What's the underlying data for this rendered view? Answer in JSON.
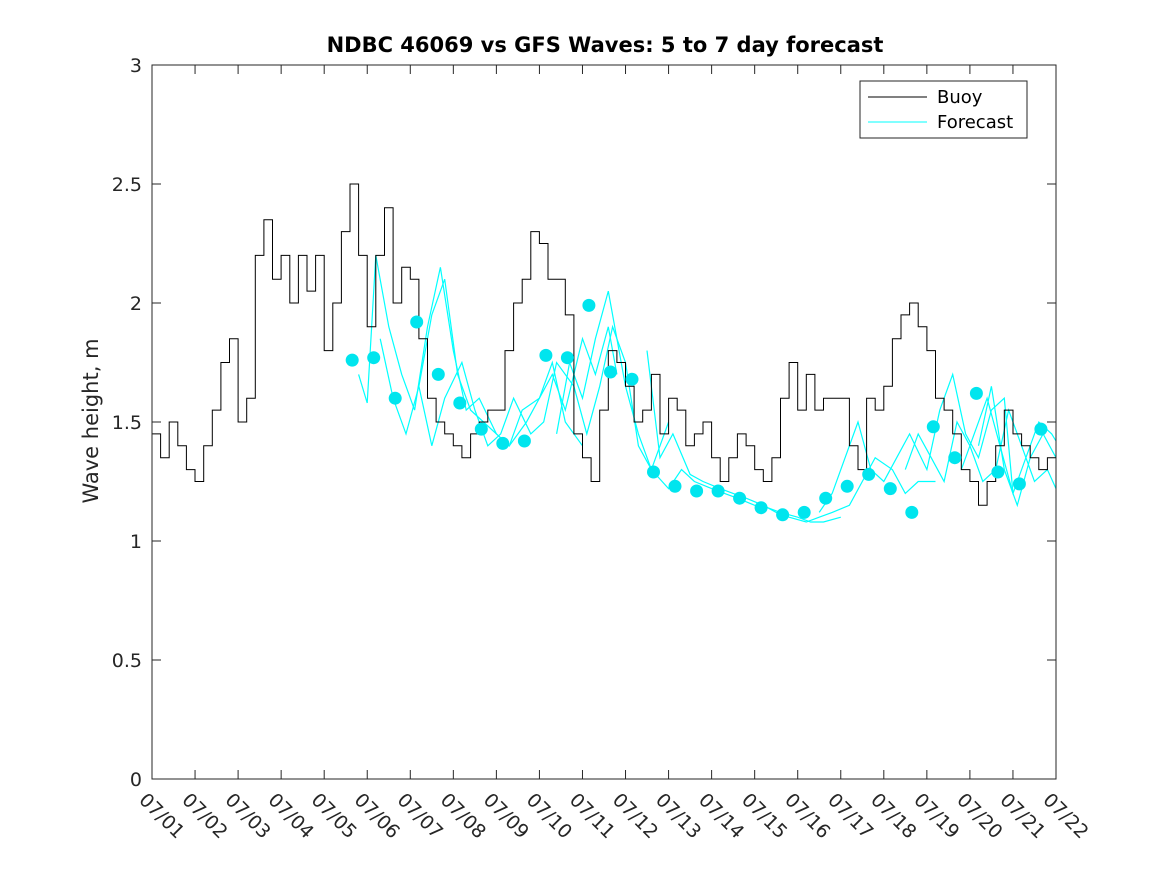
{
  "chart_data": {
    "type": "line",
    "title": "NDBC 46069 vs GFS Waves: 5 to 7 day forecast",
    "xlabel": "",
    "ylabel": "Wave height, m",
    "xlim": [
      "07/01",
      "07/22"
    ],
    "ylim": [
      0,
      3
    ],
    "x_ticks": [
      "07/01",
      "07/02",
      "07/03",
      "07/04",
      "07/05",
      "07/06",
      "07/07",
      "07/08",
      "07/09",
      "07/10",
      "07/11",
      "07/12",
      "07/13",
      "07/14",
      "07/15",
      "07/16",
      "07/17",
      "07/18",
      "07/19",
      "07/20",
      "07/21",
      "07/22"
    ],
    "y_ticks": [
      "0",
      "0.5",
      "1",
      "1.5",
      "2",
      "2.5",
      "3"
    ],
    "grid": false,
    "legend_position": "top-right",
    "colors": {
      "buoy": "#000000",
      "forecast": "#00ffff",
      "markers": "#00e5ee"
    },
    "series": [
      {
        "name": "Buoy",
        "x_day": [
          0.0,
          0.2,
          0.4,
          0.6,
          0.8,
          1.0,
          1.2,
          1.4,
          1.6,
          1.8,
          2.0,
          2.2,
          2.4,
          2.6,
          2.8,
          3.0,
          3.2,
          3.4,
          3.6,
          3.8,
          4.0,
          4.2,
          4.4,
          4.6,
          4.8,
          5.0,
          5.2,
          5.4,
          5.6,
          5.8,
          6.0,
          6.2,
          6.4,
          6.6,
          6.8,
          7.0,
          7.2,
          7.4,
          7.6,
          7.8,
          8.0,
          8.2,
          8.4,
          8.6,
          8.8,
          9.0,
          9.2,
          9.4,
          9.6,
          9.8,
          10.0,
          10.2,
          10.4,
          10.6,
          10.8,
          11.0,
          11.2,
          11.4,
          11.6,
          11.8,
          12.0,
          12.2,
          12.4,
          12.6,
          12.8,
          13.0,
          13.2,
          13.4,
          13.6,
          13.8,
          14.0,
          14.2,
          14.4,
          14.6,
          14.8,
          15.0,
          15.2,
          15.4,
          15.6,
          15.8,
          16.0,
          16.2,
          16.4,
          16.6,
          16.8,
          17.0,
          17.2,
          17.4,
          17.6,
          17.8,
          18.0,
          18.2,
          18.4,
          18.6,
          18.8,
          19.0,
          19.2,
          19.4,
          19.6,
          19.8,
          20.0,
          20.2,
          20.4,
          20.6,
          20.8,
          21.0
        ],
        "y": [
          1.45,
          1.35,
          1.5,
          1.4,
          1.3,
          1.25,
          1.4,
          1.55,
          1.75,
          1.85,
          1.5,
          1.6,
          2.2,
          2.35,
          2.1,
          2.2,
          2.0,
          2.2,
          2.05,
          2.2,
          1.8,
          2.0,
          2.3,
          2.5,
          2.2,
          1.9,
          2.2,
          2.4,
          2.0,
          2.15,
          2.1,
          1.85,
          1.6,
          1.5,
          1.45,
          1.4,
          1.35,
          1.45,
          1.5,
          1.55,
          1.55,
          1.8,
          2.0,
          2.1,
          2.3,
          2.25,
          2.1,
          2.1,
          1.95,
          1.45,
          1.35,
          1.25,
          1.55,
          1.8,
          1.75,
          1.65,
          1.5,
          1.55,
          1.7,
          1.45,
          1.6,
          1.55,
          1.4,
          1.45,
          1.5,
          1.35,
          1.25,
          1.35,
          1.45,
          1.4,
          1.3,
          1.25,
          1.35,
          1.6,
          1.75,
          1.55,
          1.7,
          1.55,
          1.6,
          1.6,
          1.6,
          1.4,
          1.3,
          1.6,
          1.55,
          1.65,
          1.85,
          1.95,
          2.0,
          1.9,
          1.8,
          1.6,
          1.55,
          1.45,
          1.3,
          1.25,
          1.15,
          1.25,
          1.4,
          1.55,
          1.45,
          1.4,
          1.35,
          1.3,
          1.35,
          1.45
        ]
      },
      {
        "name": "Forecast",
        "runs": [
          {
            "x_day": [
              4.8,
              5.0,
              5.2,
              5.5,
              5.8,
              6.1,
              6.4,
              6.7,
              7.0,
              7.3,
              7.6,
              8.0,
              8.3,
              8.6,
              9.0,
              9.3,
              9.6,
              10.0
            ],
            "y": [
              1.7,
              1.58,
              2.2,
              1.9,
              1.7,
              1.55,
              1.9,
              2.15,
              1.8,
              1.55,
              1.6,
              1.45,
              1.4,
              1.55,
              1.6,
              1.75,
              1.5,
              1.4
            ]
          },
          {
            "x_day": [
              5.3,
              5.6,
              5.9,
              6.2,
              6.5,
              6.8,
              7.1,
              7.4,
              7.7,
              8.0,
              8.3,
              8.7,
              9.0,
              9.3,
              9.6,
              10.0,
              10.3,
              10.6,
              10.8
            ],
            "y": [
              1.85,
              1.6,
              1.45,
              1.65,
              1.95,
              2.1,
              1.7,
              1.55,
              1.5,
              1.45,
              1.4,
              1.5,
              1.6,
              1.7,
              1.55,
              1.85,
              1.7,
              1.9,
              1.7
            ]
          },
          {
            "x_day": [
              6.2,
              6.5,
              6.8,
              7.2,
              7.5,
              7.8,
              8.1,
              8.4,
              8.8,
              9.1,
              9.4,
              9.8,
              10.1,
              10.4,
              10.7,
              11.0,
              11.3,
              11.6,
              12.0
            ],
            "y": [
              1.65,
              1.4,
              1.6,
              1.75,
              1.55,
              1.4,
              1.45,
              1.6,
              1.45,
              1.5,
              1.75,
              1.65,
              1.45,
              1.65,
              1.9,
              1.75,
              1.4,
              1.3,
              1.5
            ]
          },
          {
            "x_day": [
              9.4,
              9.7,
              10.0,
              10.3,
              10.6,
              11.0,
              11.3,
              11.6,
              12.0,
              12.3,
              12.6,
              13.0,
              13.3,
              13.6,
              14.0,
              14.3,
              14.6,
              15.0,
              15.3,
              15.6,
              16.0
            ],
            "y": [
              1.45,
              1.75,
              1.6,
              1.85,
              2.05,
              1.65,
              1.45,
              1.3,
              1.22,
              1.3,
              1.25,
              1.22,
              1.2,
              1.18,
              1.15,
              1.14,
              1.12,
              1.1,
              1.08,
              1.08,
              1.1
            ]
          },
          {
            "x_day": [
              11.5,
              11.8,
              12.1,
              12.5,
              12.8,
              13.2,
              13.5,
              13.8,
              14.2,
              14.5,
              14.8,
              15.2,
              15.5,
              15.8,
              16.2,
              16.5,
              16.8,
              17.2,
              17.5,
              17.8,
              18.2
            ],
            "y": [
              1.8,
              1.35,
              1.45,
              1.28,
              1.25,
              1.22,
              1.2,
              1.18,
              1.15,
              1.12,
              1.1,
              1.08,
              1.1,
              1.12,
              1.15,
              1.25,
              1.35,
              1.3,
              1.2,
              1.25,
              1.25
            ]
          },
          {
            "x_day": [
              15.5,
              15.8,
              16.1,
              16.4,
              16.7,
              17.0,
              17.3,
              17.6,
              18.0,
              18.3,
              18.6,
              18.9,
              19.2,
              19.5,
              19.8,
              20.0
            ],
            "y": [
              1.12,
              1.2,
              1.35,
              1.5,
              1.3,
              1.25,
              1.35,
              1.45,
              1.3,
              1.55,
              1.7,
              1.45,
              1.35,
              1.55,
              1.6,
              1.2
            ]
          },
          {
            "x_day": [
              17.5,
              17.8,
              18.1,
              18.4,
              18.7,
              19.0,
              19.3,
              19.6,
              19.9,
              20.2,
              20.5,
              20.8,
              21.0
            ],
            "y": [
              1.3,
              1.45,
              1.35,
              1.25,
              1.5,
              1.4,
              1.25,
              1.3,
              1.55,
              1.4,
              1.25,
              1.3,
              1.22
            ]
          },
          {
            "x_day": [
              18.8,
              19.1,
              19.4,
              19.7,
              20.0,
              20.3,
              20.6,
              20.9,
              21.0
            ],
            "y": [
              1.3,
              1.45,
              1.6,
              1.4,
              1.2,
              1.35,
              1.5,
              1.45,
              1.42
            ]
          },
          {
            "x_day": [
              19.2,
              19.5,
              19.8,
              20.1,
              20.4,
              20.7,
              21.0
            ],
            "y": [
              1.4,
              1.65,
              1.3,
              1.15,
              1.35,
              1.45,
              1.35
            ]
          }
        ],
        "markers": {
          "x_day": [
            4.65,
            5.15,
            5.65,
            6.15,
            6.65,
            7.15,
            7.65,
            8.15,
            8.65,
            9.15,
            9.65,
            10.15,
            10.65,
            11.15,
            11.65,
            12.15,
            12.65,
            13.15,
            13.65,
            14.15,
            14.65,
            15.15,
            15.65,
            16.15,
            16.65,
            17.15,
            17.65,
            18.15,
            18.65,
            19.15,
            19.65,
            20.15,
            20.65
          ],
          "y": [
            1.76,
            1.77,
            1.6,
            1.92,
            1.7,
            1.58,
            1.47,
            1.41,
            1.42,
            1.78,
            1.77,
            1.99,
            1.71,
            1.68,
            1.29,
            1.23,
            1.21,
            1.21,
            1.18,
            1.14,
            1.11,
            1.12,
            1.18,
            1.23,
            1.28,
            1.22,
            1.12,
            1.48,
            1.35,
            1.62,
            1.29,
            1.24,
            1.47
          ]
        }
      }
    ]
  }
}
